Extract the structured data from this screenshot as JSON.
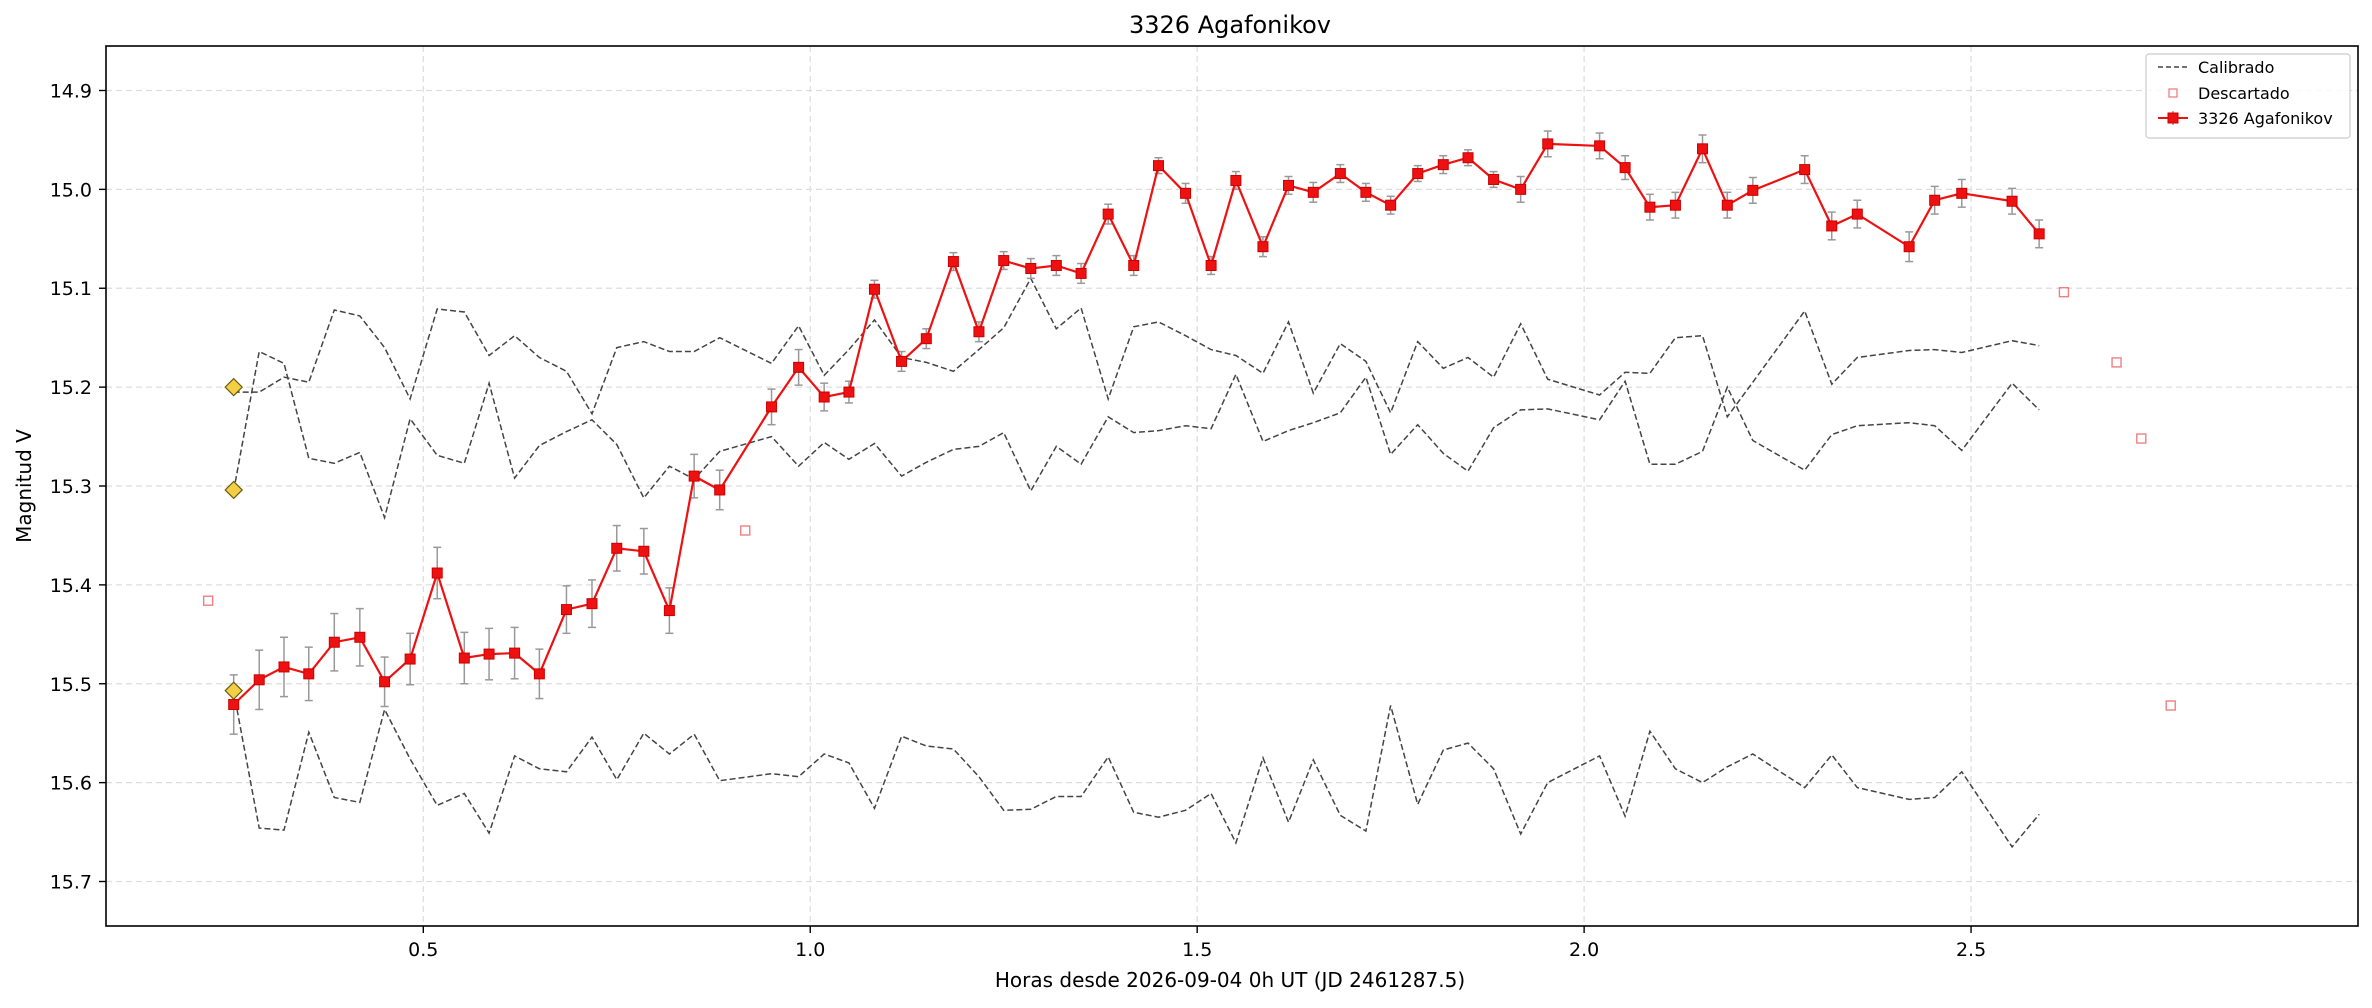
{
  "chart_data": {
    "type": "line",
    "title": "3326 Agafonikov",
    "xlabel": "Horas desde 2026-09-04 0h UT (JD 2461287.5)",
    "ylabel": "Magnitud V",
    "xlim": [
      0.09,
      3.0
    ],
    "ylim": [
      15.745,
      14.855
    ],
    "y_inverted": true,
    "grid": true,
    "legend_position": "top-right",
    "x_ticks": [
      0.5,
      1.0,
      1.5,
      2.0,
      2.5
    ],
    "x_tick_labels": [
      "0.5",
      "1.0",
      "1.5",
      "2.0",
      "2.5"
    ],
    "y_ticks": [
      14.9,
      15.0,
      15.1,
      15.2,
      15.3,
      15.4,
      15.5,
      15.6,
      15.7
    ],
    "y_tick_labels": [
      "14.9",
      "15.0",
      "15.1",
      "15.2",
      "15.3",
      "15.4",
      "15.5",
      "15.6",
      "15.7"
    ],
    "legend": [
      {
        "label": "Calibrado",
        "style": "dashed-line"
      },
      {
        "label": "Descartado",
        "style": "open-square"
      },
      {
        "label": "3326 Agafonikov",
        "style": "line-square-errorbar"
      }
    ],
    "colors": {
      "target": "#ee1111",
      "calibration": "#444444",
      "discarded": "#f08080",
      "error_bar": "#999999",
      "comparison_marker": "#f2cf44",
      "grid": "#dddddd"
    },
    "target_series": {
      "name": "3326 Agafonikov",
      "x": [
        0.255,
        0.288,
        0.32,
        0.352,
        0.385,
        0.418,
        0.45,
        0.483,
        0.518,
        0.553,
        0.585,
        0.618,
        0.65,
        0.685,
        0.718,
        0.75,
        0.785,
        0.818,
        0.85,
        0.883,
        0.95,
        0.985,
        1.018,
        1.05,
        1.083,
        1.118,
        1.15,
        1.185,
        1.218,
        1.25,
        1.285,
        1.318,
        1.35,
        1.385,
        1.418,
        1.45,
        1.485,
        1.518,
        1.55,
        1.585,
        1.618,
        1.65,
        1.685,
        1.718,
        1.75,
        1.785,
        1.818,
        1.85,
        1.883,
        1.918,
        1.953,
        2.02,
        2.053,
        2.085,
        2.118,
        2.153,
        2.185,
        2.218,
        2.285,
        2.32,
        2.353,
        2.42,
        2.453,
        2.488,
        2.553,
        2.588
      ],
      "y": [
        15.521,
        15.496,
        15.483,
        15.49,
        15.458,
        15.453,
        15.498,
        15.475,
        15.388,
        15.474,
        15.47,
        15.469,
        15.49,
        15.425,
        15.419,
        15.363,
        15.366,
        15.426,
        15.29,
        15.304,
        15.22,
        15.18,
        15.21,
        15.205,
        15.101,
        15.174,
        15.151,
        15.073,
        15.144,
        15.072,
        15.08,
        15.077,
        15.085,
        15.025,
        15.077,
        14.976,
        15.004,
        15.077,
        14.991,
        15.058,
        14.996,
        15.003,
        14.984,
        15.003,
        15.016,
        14.984,
        14.975,
        14.968,
        14.99,
        15.0,
        14.954,
        14.956,
        14.978,
        15.018,
        15.016,
        14.959,
        15.016,
        15.001,
        14.98,
        15.037,
        15.025,
        15.058,
        15.011,
        15.004,
        15.012,
        15.045
      ],
      "error": [
        0.03,
        0.03,
        0.03,
        0.027,
        0.029,
        0.029,
        0.025,
        0.026,
        0.026,
        0.026,
        0.026,
        0.026,
        0.025,
        0.024,
        0.024,
        0.023,
        0.023,
        0.023,
        0.022,
        0.02,
        0.018,
        0.018,
        0.014,
        0.011,
        0.009,
        0.01,
        0.01,
        0.009,
        0.01,
        0.009,
        0.01,
        0.01,
        0.01,
        0.01,
        0.01,
        0.008,
        0.01,
        0.009,
        0.009,
        0.01,
        0.009,
        0.01,
        0.009,
        0.009,
        0.009,
        0.008,
        0.009,
        0.008,
        0.008,
        0.013,
        0.013,
        0.013,
        0.012,
        0.013,
        0.013,
        0.014,
        0.013,
        0.013,
        0.014,
        0.014,
        0.014,
        0.015,
        0.014,
        0.014,
        0.013,
        0.014
      ]
    },
    "calibration_series": [
      {
        "x": [
          0.255,
          0.288,
          0.32,
          0.352,
          0.385,
          0.418,
          0.45,
          0.483,
          0.518,
          0.553,
          0.585,
          0.618,
          0.65,
          0.685,
          0.718,
          0.75,
          0.785,
          0.818,
          0.85,
          0.883,
          0.95,
          0.985,
          1.018,
          1.05,
          1.083,
          1.118,
          1.15,
          1.185,
          1.218,
          1.25,
          1.285,
          1.318,
          1.35,
          1.385,
          1.418,
          1.45,
          1.485,
          1.518,
          1.55,
          1.585,
          1.618,
          1.65,
          1.685,
          1.718,
          1.75,
          1.785,
          1.818,
          1.85,
          1.883,
          1.918,
          1.953,
          2.02,
          2.053,
          2.085,
          2.118,
          2.153,
          2.185,
          2.218,
          2.285,
          2.32,
          2.353,
          2.42,
          2.453,
          2.488,
          2.553,
          2.588
        ],
        "y": [
          15.205,
          15.205,
          15.19,
          15.195,
          15.122,
          15.128,
          15.16,
          15.212,
          15.121,
          15.124,
          15.168,
          15.148,
          15.17,
          15.184,
          15.227,
          15.16,
          15.154,
          15.164,
          15.164,
          15.15,
          15.176,
          15.138,
          15.188,
          15.162,
          15.132,
          15.17,
          15.175,
          15.184,
          15.162,
          15.14,
          15.09,
          15.141,
          15.12,
          15.212,
          15.139,
          15.134,
          15.148,
          15.162,
          15.168,
          15.186,
          15.134,
          15.206,
          15.156,
          15.174,
          15.226,
          15.154,
          15.181,
          15.17,
          15.19,
          15.136,
          15.192,
          15.208,
          15.185,
          15.186,
          15.15,
          15.148,
          15.23,
          15.195,
          15.123,
          15.197,
          15.17,
          15.163,
          15.162,
          15.165,
          15.153,
          15.158
        ]
      },
      {
        "x": [
          0.255,
          0.288,
          0.32,
          0.352,
          0.385,
          0.418,
          0.45,
          0.483,
          0.518,
          0.553,
          0.585,
          0.618,
          0.65,
          0.685,
          0.718,
          0.75,
          0.785,
          0.818,
          0.85,
          0.883,
          0.95,
          0.985,
          1.018,
          1.05,
          1.083,
          1.118,
          1.15,
          1.185,
          1.218,
          1.25,
          1.285,
          1.318,
          1.35,
          1.385,
          1.418,
          1.45,
          1.485,
          1.518,
          1.55,
          1.585,
          1.618,
          1.65,
          1.685,
          1.718,
          1.75,
          1.785,
          1.818,
          1.85,
          1.883,
          1.918,
          1.953,
          2.02,
          2.053,
          2.085,
          2.118,
          2.153,
          2.185,
          2.218,
          2.285,
          2.32,
          2.353,
          2.42,
          2.453,
          2.488,
          2.553,
          2.588
        ],
        "y": [
          15.305,
          15.164,
          15.176,
          15.272,
          15.277,
          15.266,
          15.332,
          15.232,
          15.269,
          15.277,
          15.196,
          15.292,
          15.259,
          15.245,
          15.233,
          15.258,
          15.312,
          15.28,
          15.293,
          15.265,
          15.25,
          15.28,
          15.256,
          15.273,
          15.257,
          15.29,
          15.276,
          15.263,
          15.26,
          15.246,
          15.305,
          15.26,
          15.278,
          15.23,
          15.246,
          15.244,
          15.239,
          15.242,
          15.187,
          15.255,
          15.244,
          15.236,
          15.226,
          15.19,
          15.268,
          15.238,
          15.267,
          15.285,
          15.241,
          15.223,
          15.222,
          15.233,
          15.194,
          15.278,
          15.278,
          15.265,
          15.2,
          15.254,
          15.284,
          15.248,
          15.239,
          15.236,
          15.239,
          15.264,
          15.196,
          15.223
        ]
      },
      {
        "x": [
          0.255,
          0.288,
          0.32,
          0.352,
          0.385,
          0.418,
          0.45,
          0.483,
          0.518,
          0.553,
          0.585,
          0.618,
          0.65,
          0.685,
          0.718,
          0.75,
          0.785,
          0.818,
          0.85,
          0.883,
          0.95,
          0.985,
          1.018,
          1.05,
          1.083,
          1.118,
          1.15,
          1.185,
          1.218,
          1.25,
          1.285,
          1.318,
          1.35,
          1.385,
          1.418,
          1.45,
          1.485,
          1.518,
          1.55,
          1.585,
          1.618,
          1.65,
          1.685,
          1.718,
          1.75,
          1.785,
          1.818,
          1.85,
          1.883,
          1.918,
          1.953,
          2.02,
          2.053,
          2.085,
          2.118,
          2.153,
          2.185,
          2.218,
          2.285,
          2.32,
          2.353,
          2.42,
          2.453,
          2.488,
          2.553,
          2.588
        ],
        "y": [
          15.508,
          15.646,
          15.648,
          15.549,
          15.615,
          15.62,
          15.526,
          15.576,
          15.623,
          15.611,
          15.651,
          15.573,
          15.586,
          15.589,
          15.554,
          15.597,
          15.55,
          15.571,
          15.551,
          15.598,
          15.591,
          15.594,
          15.571,
          15.58,
          15.626,
          15.553,
          15.563,
          15.566,
          15.594,
          15.628,
          15.627,
          15.614,
          15.614,
          15.574,
          15.63,
          15.635,
          15.628,
          15.611,
          15.661,
          15.575,
          15.64,
          15.577,
          15.633,
          15.649,
          15.522,
          15.622,
          15.567,
          15.56,
          15.586,
          15.652,
          15.6,
          15.573,
          15.634,
          15.548,
          15.586,
          15.6,
          15.584,
          15.571,
          15.605,
          15.572,
          15.605,
          15.617,
          15.615,
          15.589,
          15.665,
          15.632
        ]
      }
    ],
    "comparison_markers": {
      "x": [
        0.255,
        0.255,
        0.255
      ],
      "y": [
        15.2,
        15.304,
        15.507
      ]
    },
    "discarded": {
      "x": [
        0.222,
        0.916,
        2.62,
        2.688,
        2.72,
        2.758
      ],
      "y": [
        15.416,
        15.345,
        15.104,
        15.175,
        15.252,
        15.522
      ]
    }
  }
}
